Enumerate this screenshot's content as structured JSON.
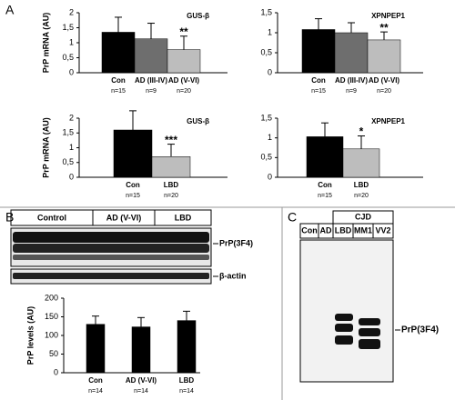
{
  "panels": {
    "a": "A",
    "b": "B",
    "c": "C"
  },
  "blots": {
    "b": {
      "groups": [
        "Control",
        "AD (V-VI)",
        "LBD"
      ],
      "bands": [
        "PrP(3F4)",
        "β-actin"
      ]
    },
    "c": {
      "group": "CJD",
      "lanes": [
        "Con",
        "AD",
        "LBD",
        "MM1",
        "VV2"
      ],
      "band": "PrP(3F4)"
    }
  },
  "chart_data": [
    {
      "type": "bar",
      "title": "GUS-β",
      "y_label": "PrP mRNA (AU)",
      "categories": [
        "Con",
        "AD (III-IV)",
        "AD (V-VI)"
      ],
      "n_labels": [
        "n=15",
        "n=9",
        "n=20"
      ],
      "values": [
        1.35,
        1.13,
        0.77
      ],
      "errors": [
        0.5,
        0.52,
        0.45
      ],
      "colors": [
        "#000000",
        "#6e6e6e",
        "#bdbdbd"
      ],
      "annotations": [
        null,
        null,
        "**"
      ],
      "ylim": [
        0,
        2
      ],
      "yticks": [
        0,
        {
          "value": 0.5,
          "label": "0,5"
        },
        1,
        {
          "value": 1.5,
          "label": "1,5"
        },
        2
      ]
    },
    {
      "type": "bar",
      "title": "XPNPEP1",
      "categories": [
        "Con",
        "AD (III-IV)",
        "AD (V-VI)"
      ],
      "n_labels": [
        "n=15",
        "n=9",
        "n=20"
      ],
      "values": [
        1.08,
        1.0,
        0.82
      ],
      "errors": [
        0.27,
        0.25,
        0.2
      ],
      "colors": [
        "#000000",
        "#6e6e6e",
        "#bdbdbd"
      ],
      "annotations": [
        null,
        null,
        "**"
      ],
      "ylim": [
        0,
        1.5
      ],
      "yticks": [
        0,
        {
          "value": 0.5,
          "label": "0,5"
        },
        1,
        {
          "value": 1.5,
          "label": "1,5"
        }
      ]
    },
    {
      "type": "bar",
      "title": "GUS-β",
      "y_label": "PrP mRNA (AU)",
      "categories": [
        "Con",
        "LBD"
      ],
      "n_labels": [
        "n=15",
        "n=20"
      ],
      "values": [
        1.6,
        0.7
      ],
      "errors": [
        0.65,
        0.42
      ],
      "colors": [
        "#000000",
        "#bdbdbd"
      ],
      "annotations": [
        null,
        "***"
      ],
      "ylim": [
        0,
        2
      ],
      "yticks": [
        0,
        {
          "value": 0.5,
          "label": "0,5"
        },
        1,
        {
          "value": 1.5,
          "label": "1,5"
        },
        2
      ]
    },
    {
      "type": "bar",
      "title": "XPNPEP1",
      "categories": [
        "Con",
        "LBD"
      ],
      "n_labels": [
        "n=15",
        "n=20"
      ],
      "values": [
        1.03,
        0.72
      ],
      "errors": [
        0.35,
        0.33
      ],
      "colors": [
        "#000000",
        "#bdbdbd"
      ],
      "annotations": [
        null,
        "*"
      ],
      "ylim": [
        0,
        1.5
      ],
      "yticks": [
        0,
        {
          "value": 0.5,
          "label": "0,5"
        },
        1,
        {
          "value": 1.5,
          "label": "1,5"
        }
      ]
    },
    {
      "type": "bar",
      "y_label": "PrP levels (AU)",
      "categories": [
        "Con",
        "AD (V-VI)",
        "LBD"
      ],
      "n_labels": [
        "n=14",
        "n=14",
        "n=14"
      ],
      "values": [
        130,
        123,
        140
      ],
      "errors": [
        22,
        25,
        25
      ],
      "colors": [
        "#000000",
        "#000000",
        "#000000"
      ],
      "ylim": [
        0,
        200
      ],
      "yticks": [
        0,
        50,
        100,
        150,
        200
      ]
    }
  ]
}
